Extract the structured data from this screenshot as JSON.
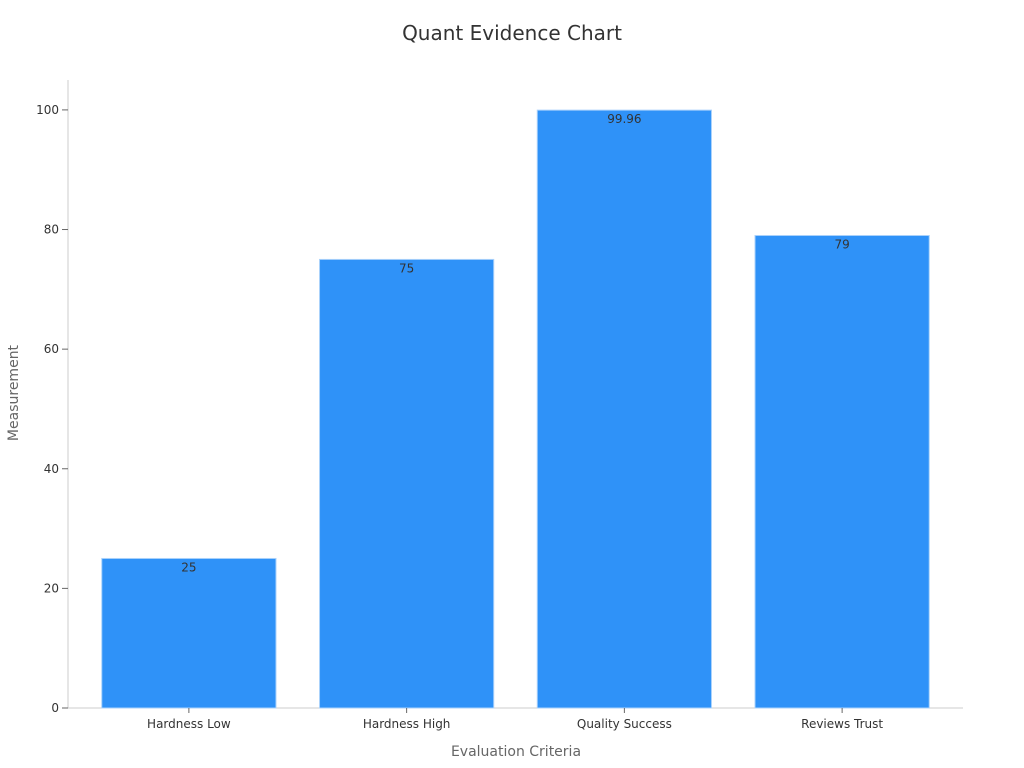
{
  "chart_data": {
    "type": "bar",
    "title": "Quant Evidence Chart",
    "xlabel": "Evaluation Criteria",
    "ylabel": "Measurement",
    "categories": [
      "Hardness Low",
      "Hardness High",
      "Quality Success",
      "Reviews Trust"
    ],
    "values": [
      25,
      75,
      99.96,
      79
    ],
    "data_labels": [
      "25",
      "75",
      "99.96",
      "79"
    ],
    "ylim": [
      0,
      105
    ],
    "yticks": [
      0,
      20,
      40,
      60,
      80,
      100
    ],
    "grid": false,
    "legend": "none"
  },
  "colors": {
    "bar": "#2f92f8",
    "bar_edge": "#a9d1fb",
    "axis": "#cccccc",
    "text": "#333333",
    "axis_label": "#666666"
  }
}
